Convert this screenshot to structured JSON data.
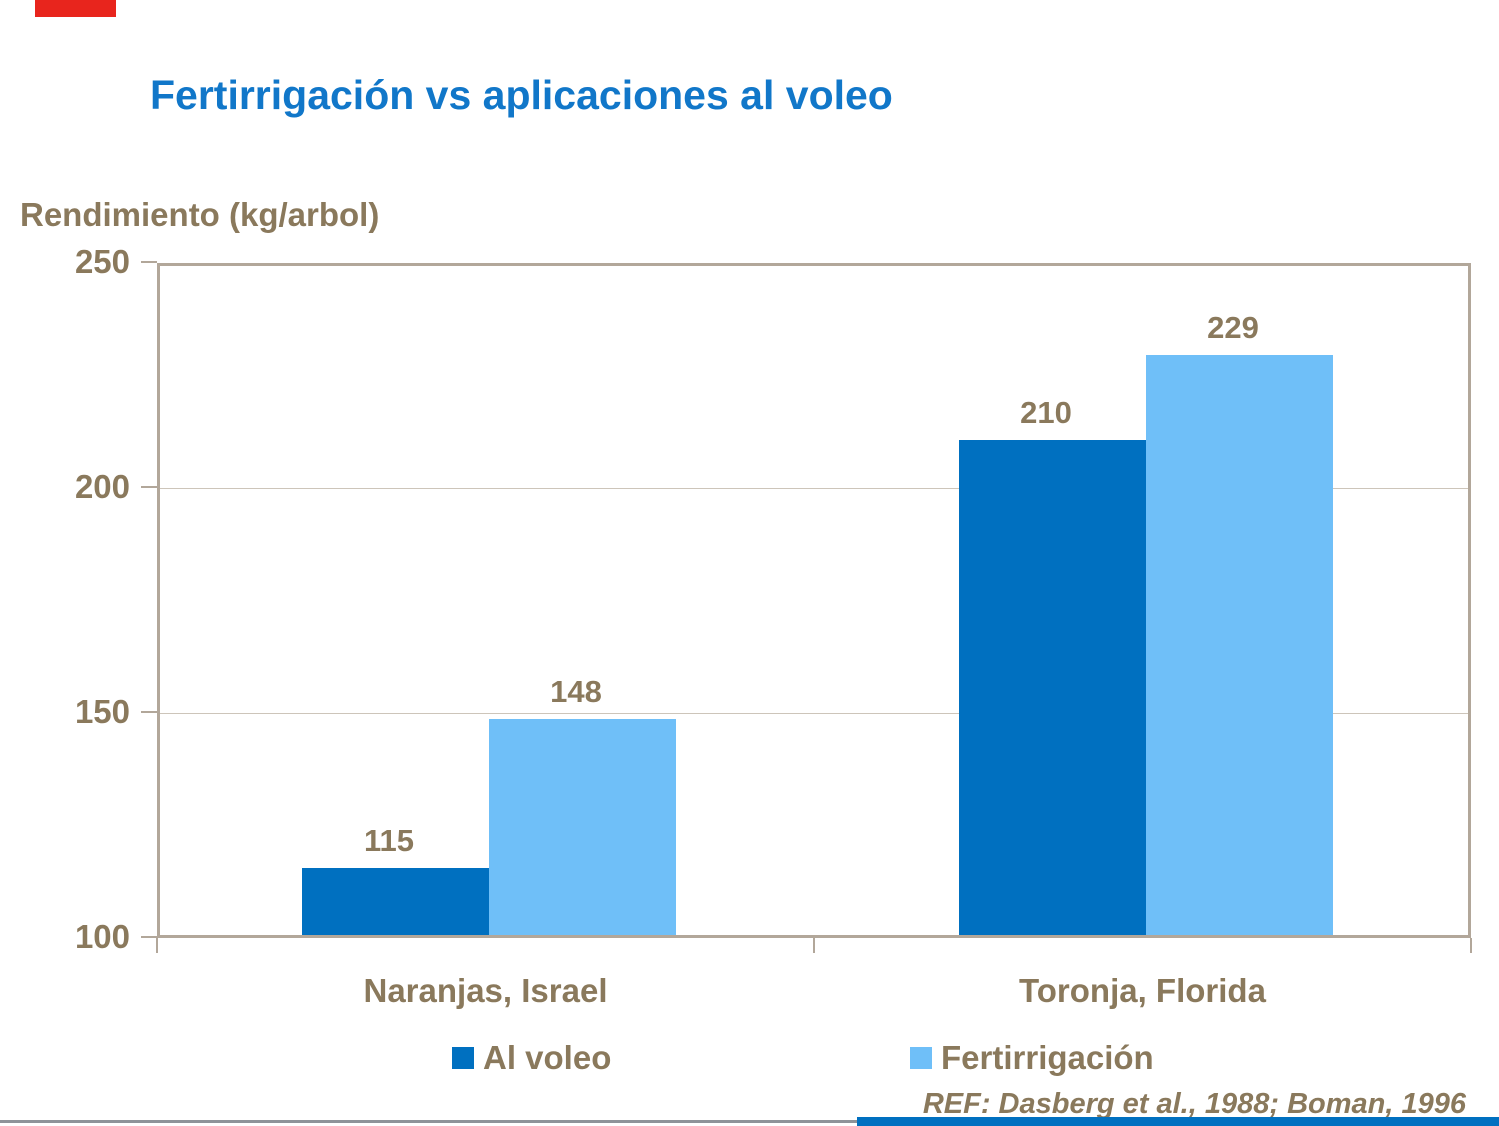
{
  "header": {
    "title": "Fertirrigación vs aplicaciones al voleo"
  },
  "axis": {
    "ylabel": "Rendimiento (kg/arbol)"
  },
  "footer": {
    "reference": "REF: Dasberg et al., 1988; Boman, 1996"
  },
  "colors": {
    "title": "#1177C9",
    "text": "#8A795C",
    "axis": "#B2A79A",
    "grid": "#CDC5BA"
  },
  "accents": {
    "top_red": "#E8251D",
    "bottom_blue": "#0070C0",
    "bottom_line": "#8E9399"
  },
  "chart_data": {
    "type": "bar",
    "title": "Fertirrigación vs aplicaciones al voleo",
    "ylabel": "Rendimiento (kg/arbol)",
    "categories": [
      "Naranjas, Israel",
      "Toronja, Florida"
    ],
    "series": [
      {
        "name": "Al voleo",
        "color": "#0070C0",
        "values": [
          115,
          210
        ]
      },
      {
        "name": "Fertirrigación",
        "color": "#6FBFF8",
        "values": [
          148,
          229
        ]
      }
    ],
    "ylim": [
      100,
      250
    ],
    "yticks": [
      100,
      150,
      200,
      250
    ],
    "grid": true,
    "value_labels": true,
    "legend_position": "bottom"
  }
}
